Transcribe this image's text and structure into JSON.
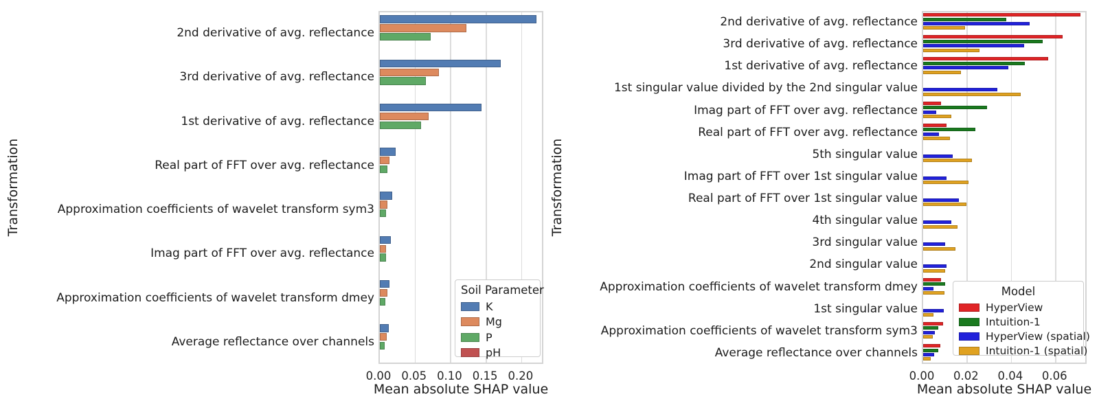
{
  "figure": {
    "background": "#ffffff",
    "grid_color": "#dcdcdc",
    "spine_color": "#d4d4d4"
  },
  "chart_data": [
    {
      "type": "bar",
      "orientation": "horizontal",
      "title": "",
      "xlabel": "Mean absolute SHAP value",
      "ylabel": "Transformation",
      "legend_title": "Soil Parameter",
      "legend_position": "lower right inside plot",
      "grid": true,
      "xlim": [
        0,
        0.232
      ],
      "xticks": [
        "0.00",
        "0.05",
        "0.10",
        "0.15",
        "0.20"
      ],
      "xtick_values": [
        0.0,
        0.05,
        0.1,
        0.15,
        0.2
      ],
      "categories": [
        "2nd derivative of avg. reflectance",
        "3rd derivative of avg. reflectance",
        "1st derivative of avg. reflectance",
        "Real part of FFT over avg. reflectance",
        "Approximation coefficients of wavelet transform sym3",
        "Imag part of FFT over avg. reflectance",
        "Approximation coefficients of wavelet transform dmey",
        "Average reflectance over channels"
      ],
      "series": [
        {
          "name": "K",
          "color": "#527cb3",
          "values": [
            0.22,
            0.17,
            0.143,
            0.022,
            0.0175,
            0.0155,
            0.0135,
            0.0126
          ]
        },
        {
          "name": "Mg",
          "color": "#dd8a5e",
          "values": [
            0.122,
            0.083,
            0.069,
            0.0135,
            0.0105,
            0.0087,
            0.0106,
            0.0097
          ]
        },
        {
          "name": "P",
          "color": "#5fa966",
          "values": [
            0.072,
            0.065,
            0.058,
            0.0105,
            0.009,
            0.0087,
            0.0077,
            0.0068
          ]
        },
        {
          "name": "pH",
          "color": "#c05151",
          "values": [
            0.0008,
            0.0008,
            0.0008,
            0.0008,
            0.0008,
            0.0008,
            0.0008,
            0.0008
          ]
        }
      ]
    },
    {
      "type": "bar",
      "orientation": "horizontal",
      "title": "",
      "xlabel": "Mean absolute SHAP value",
      "ylabel": "Transformation",
      "legend_title": "Model",
      "legend_position": "lower right inside plot",
      "grid": true,
      "xlim": [
        0,
        0.0745
      ],
      "xticks": [
        "0.00",
        "0.02",
        "0.04",
        "0.06"
      ],
      "xtick_values": [
        0.0,
        0.02,
        0.04,
        0.06
      ],
      "categories": [
        "2nd derivative of avg. reflectance",
        "3rd derivative of avg. reflectance",
        "1st derivative of avg. reflectance",
        "1st singular value divided by the 2nd singular value",
        "Imag part of FFT over avg. reflectance",
        "Real part of FFT over avg. reflectance",
        "5th singular value",
        "Imag part of FFT over 1st singular value",
        "Real part of FFT over 1st singular value",
        "4th singular value",
        "3rd singular value",
        "2nd singular value",
        "Approximation coefficients of wavelet transform dmey",
        "1st singular value",
        "Approximation coefficients of wavelet transform sym3",
        "Average reflectance over channels"
      ],
      "series": [
        {
          "name": "HyperView",
          "color": "#e02426",
          "values": [
            0.071,
            0.063,
            0.0565,
            0,
            0.008,
            0.0105,
            0,
            0,
            0,
            0,
            0,
            0,
            0.008,
            0,
            0.009,
            0.0078
          ]
        },
        {
          "name": "Intuition-1",
          "color": "#1a7a1f",
          "values": [
            0.0375,
            0.054,
            0.046,
            0,
            0.0288,
            0.0235,
            0,
            0,
            0,
            0,
            0,
            0,
            0.0099,
            0,
            0.0068,
            0.0068
          ]
        },
        {
          "name": "HyperView (spatial)",
          "color": "#2121db",
          "values": [
            0.048,
            0.0455,
            0.0385,
            0.0335,
            0.006,
            0.007,
            0.0133,
            0.0105,
            0.016,
            0.0127,
            0.0099,
            0.0105,
            0.0046,
            0.0094,
            0.0053,
            0.005
          ]
        },
        {
          "name": "Intuition-1 (spatial)",
          "color": "#e0a221",
          "values": [
            0.019,
            0.0255,
            0.017,
            0.044,
            0.0127,
            0.012,
            0.022,
            0.0204,
            0.0197,
            0.0155,
            0.0145,
            0.0099,
            0.0096,
            0.0047,
            0.0043,
            0.0034
          ]
        }
      ]
    }
  ]
}
